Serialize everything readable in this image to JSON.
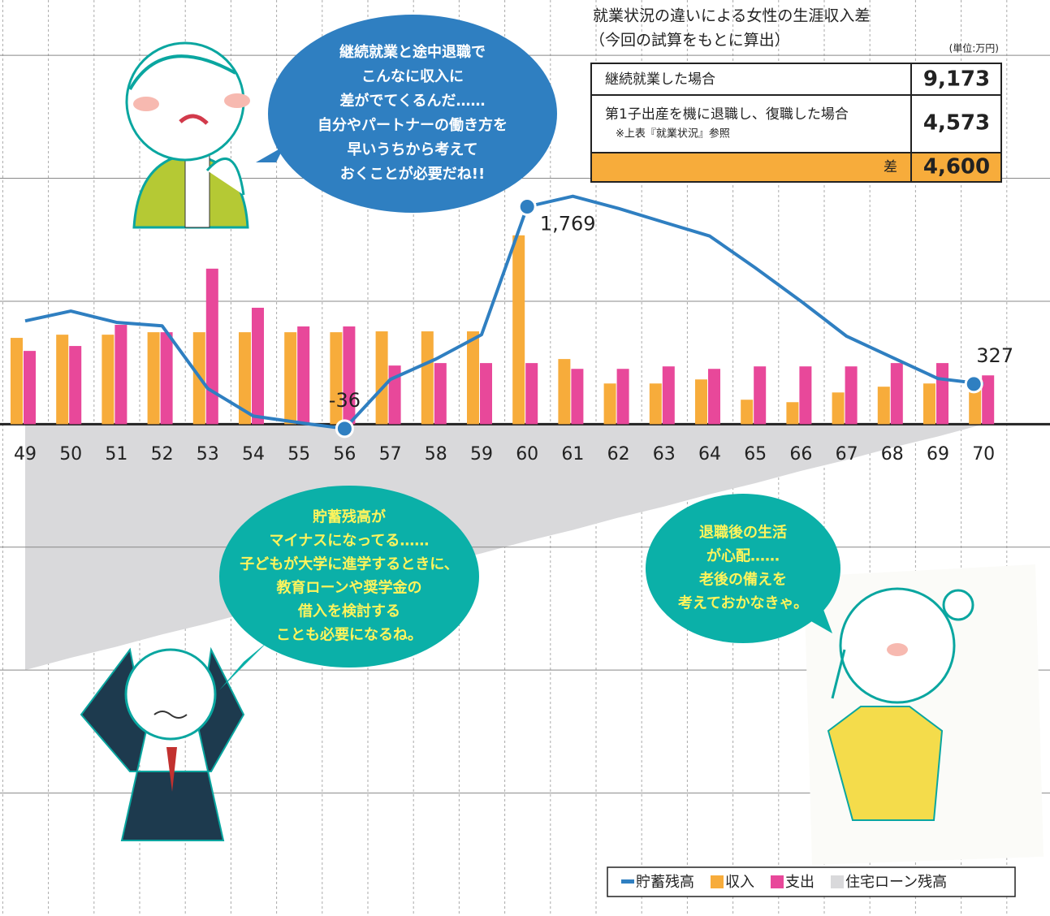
{
  "chart_data": {
    "type": "bar-line",
    "categories": [
      "49",
      "50",
      "51",
      "52",
      "53",
      "54",
      "55",
      "56",
      "57",
      "58",
      "59",
      "60",
      "61",
      "62",
      "63",
      "64",
      "65",
      "66",
      "67",
      "68",
      "69",
      "70"
    ],
    "series": [
      {
        "name": "貯蓄残高",
        "kind": "line",
        "color": "#2f7fc1",
        "values": [
          840,
          920,
          828,
          800,
          290,
          66,
          13,
          -36,
          364,
          530,
          728,
          1769,
          1854,
          1755,
          1642,
          1530,
          1271,
          1000,
          715,
          543,
          371,
          327
        ],
        "value_labels": [
          null,
          null,
          null,
          null,
          null,
          null,
          null,
          "-36",
          null,
          null,
          null,
          "1,769",
          null,
          null,
          null,
          null,
          null,
          null,
          null,
          null,
          null,
          "327"
        ]
      },
      {
        "name": "収入",
        "kind": "bar",
        "color": "#f7ac3b",
        "values": [
          702,
          728,
          728,
          748,
          748,
          748,
          748,
          748,
          755,
          755,
          755,
          1536,
          530,
          331,
          331,
          364,
          199,
          179,
          258,
          305,
          331,
          311
        ]
      },
      {
        "name": "支出",
        "kind": "bar",
        "color": "#e8489a",
        "values": [
          596,
          636,
          808,
          748,
          1265,
          947,
          795,
          795,
          477,
          497,
          497,
          497,
          450,
          450,
          470,
          450,
          470,
          470,
          470,
          497,
          497,
          397
        ]
      },
      {
        "name": "住宅ローン残高",
        "kind": "area",
        "color": "#d9d9db",
        "values": [
          -2000,
          -1900,
          -1810,
          -1710,
          -1620,
          -1520,
          -1430,
          -1330,
          -1240,
          -1140,
          -1050,
          -950,
          -860,
          -760,
          -670,
          -570,
          -480,
          -380,
          -290,
          -190,
          -100,
          0
        ]
      }
    ],
    "ylim": [
      -4000,
      3450
    ],
    "ygrid": [
      -3000,
      -2000,
      -1000,
      0,
      1000,
      2000,
      3000
    ],
    "annotations": [
      {
        "lines": [
          "継続就業と途中退職で",
          "こんなに収入に",
          "差がでてくるんだ……",
          "自分やパートナーの働き方を",
          "早いうちから考えて",
          "おくことが必要だね!!"
        ]
      },
      {
        "lines": [
          "貯蓄残高が",
          "マイナスになってる……",
          "子どもが大学に進学するときに、",
          "教育ローンや奨学金の",
          "借入を検討する",
          "ことも必要になるね。"
        ]
      },
      {
        "lines": [
          "退職後の生活",
          "が心配……",
          "老後の備えを",
          "考えておかなきゃ。"
        ]
      }
    ]
  },
  "table": {
    "title": "就業状況の違いによる女性の生涯収入差",
    "subtitle": "（今回の試算をもとに算出）",
    "unit": "(単位:万円)",
    "rows": [
      [
        "継続就業した場合",
        "9,173"
      ],
      [
        "第1子出産を機に退職し、復職した場合",
        "4,573"
      ],
      [
        "差",
        "4,600"
      ]
    ],
    "note": "※上表『就業状況』参照"
  }
}
